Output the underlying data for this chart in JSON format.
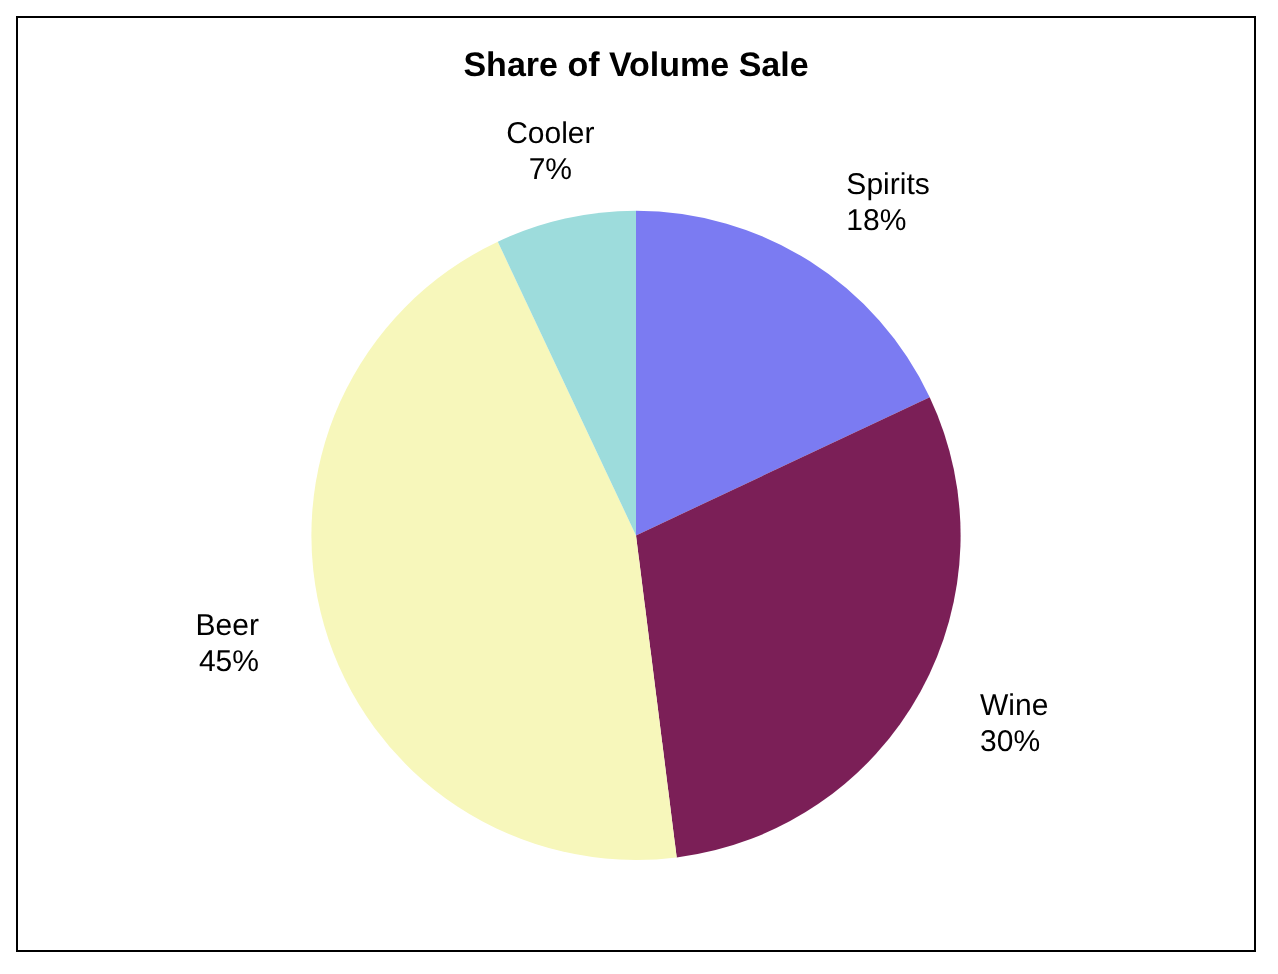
{
  "chart_data": {
    "type": "pie",
    "title": "Share of Volume Sale",
    "categories": [
      "Spirits",
      "Wine",
      "Beer",
      "Cooler"
    ],
    "values": [
      18,
      30,
      45,
      7
    ],
    "value_labels": [
      "18%",
      "30%",
      "45%",
      "7%"
    ],
    "colors": [
      "#7b7bf2",
      "#7b1f57",
      "#f7f7bb",
      "#9ddcdc"
    ],
    "legend": false
  }
}
